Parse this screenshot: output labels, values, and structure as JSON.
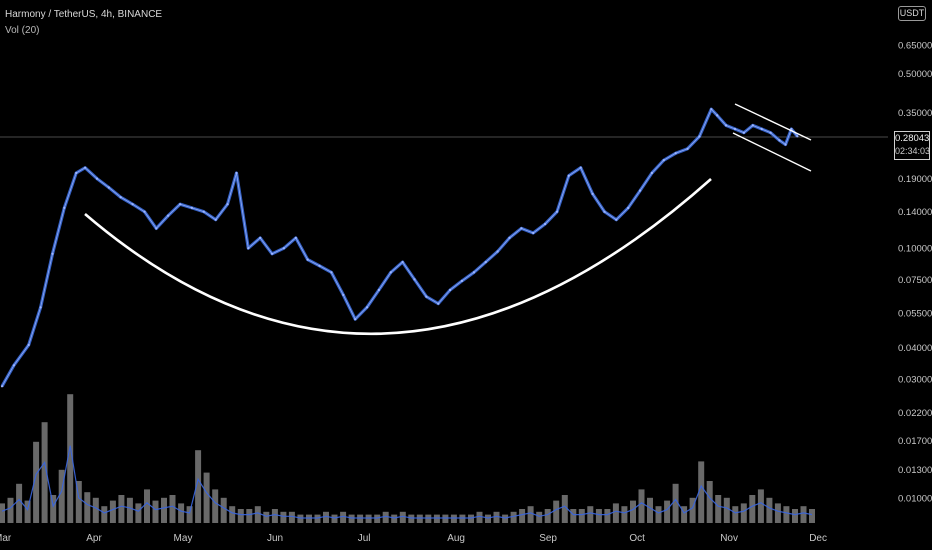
{
  "header": {
    "symbol_line": "Harmony / TetherUS, 4h, BINANCE",
    "indicator_line": "Vol (20)",
    "currency_badge": "USDT"
  },
  "price_badge": {
    "price": "0.28043",
    "countdown": "02:34:03"
  },
  "colors": {
    "background": "#000000",
    "price_line": "#3a6ad8",
    "price_line_hi": "#9fb6ff",
    "volume_bar": "#8c8c8c",
    "volume_line": "#3a66e0",
    "annotation": "#ffffff",
    "axis_text": "#c8c8c8"
  },
  "chart_data": {
    "type": "line",
    "y_scale": "log",
    "y_ticks": [
      "0.65000",
      "0.50000",
      "0.35000",
      "0.19000",
      "0.14000",
      "0.10000",
      "0.07500",
      "0.05500",
      "0.04000",
      "0.03000",
      "0.02200",
      "0.01700",
      "0.01300",
      "0.01000"
    ],
    "x_ticks": [
      "Mar",
      "Apr",
      "May",
      "Jun",
      "Jul",
      "Aug",
      "Sep",
      "Oct",
      "Nov",
      "Dec"
    ],
    "ylim": [
      0.0078,
      0.85
    ],
    "series": [
      {
        "x": [
          "2021-03-01",
          "2021-03-05",
          "2021-03-10",
          "2021-03-14",
          "2021-03-18",
          "2021-03-22",
          "2021-03-26",
          "2021-03-29",
          "2021-04-02",
          "2021-04-06",
          "2021-04-10",
          "2021-04-14",
          "2021-04-18",
          "2021-04-22",
          "2021-04-26",
          "2021-04-30",
          "2021-05-04",
          "2021-05-08",
          "2021-05-12",
          "2021-05-16",
          "2021-05-19",
          "2021-05-23",
          "2021-05-27",
          "2021-05-31",
          "2021-06-04",
          "2021-06-08",
          "2021-06-12",
          "2021-06-16",
          "2021-06-20",
          "2021-06-24",
          "2021-06-28",
          "2021-07-02",
          "2021-07-06",
          "2021-07-10",
          "2021-07-14",
          "2021-07-18",
          "2021-07-22",
          "2021-07-26",
          "2021-07-30",
          "2021-08-03",
          "2021-08-07",
          "2021-08-11",
          "2021-08-15",
          "2021-08-19",
          "2021-08-23",
          "2021-08-27",
          "2021-08-31",
          "2021-09-04",
          "2021-09-08",
          "2021-09-12",
          "2021-09-16",
          "2021-09-20",
          "2021-09-24",
          "2021-09-28",
          "2021-10-02",
          "2021-10-06",
          "2021-10-10",
          "2021-10-14",
          "2021-10-18",
          "2021-10-22",
          "2021-10-26",
          "2021-10-28",
          "2021-10-31",
          "2021-11-03",
          "2021-11-06",
          "2021-11-09",
          "2021-11-12",
          "2021-11-15",
          "2021-11-18",
          "2021-11-20",
          "2021-11-22",
          "2021-11-24"
        ],
        "values": [
          0.028,
          0.034,
          0.041,
          0.058,
          0.095,
          0.145,
          0.2,
          0.21,
          0.19,
          0.175,
          0.16,
          0.15,
          0.14,
          0.12,
          0.135,
          0.15,
          0.145,
          0.14,
          0.13,
          0.15,
          0.2,
          0.1,
          0.11,
          0.095,
          0.1,
          0.11,
          0.09,
          0.085,
          0.08,
          0.065,
          0.052,
          0.058,
          0.068,
          0.08,
          0.088,
          0.075,
          0.064,
          0.06,
          0.068,
          0.074,
          0.08,
          0.088,
          0.097,
          0.11,
          0.12,
          0.115,
          0.125,
          0.14,
          0.195,
          0.21,
          0.165,
          0.14,
          0.13,
          0.145,
          0.17,
          0.2,
          0.225,
          0.24,
          0.25,
          0.28,
          0.36,
          0.34,
          0.31,
          0.3,
          0.29,
          0.31,
          0.3,
          0.29,
          0.27,
          0.26,
          0.3,
          0.28043
        ]
      }
    ],
    "volume": {
      "title": "Vol (20)",
      "values": [
        0.7,
        0.9,
        1.4,
        0.8,
        2.9,
        3.6,
        1.0,
        1.9,
        4.6,
        1.5,
        1.1,
        0.9,
        0.6,
        0.8,
        1.0,
        0.9,
        0.7,
        1.2,
        0.8,
        0.9,
        1.0,
        0.7,
        0.6,
        2.6,
        1.8,
        1.2,
        0.9,
        0.6,
        0.5,
        0.5,
        0.6,
        0.4,
        0.5,
        0.4,
        0.4,
        0.3,
        0.3,
        0.3,
        0.4,
        0.3,
        0.4,
        0.3,
        0.3,
        0.3,
        0.3,
        0.4,
        0.3,
        0.4,
        0.3,
        0.3,
        0.3,
        0.3,
        0.3,
        0.3,
        0.3,
        0.3,
        0.4,
        0.3,
        0.4,
        0.3,
        0.4,
        0.5,
        0.6,
        0.4,
        0.5,
        0.8,
        1.0,
        0.5,
        0.5,
        0.6,
        0.5,
        0.5,
        0.7,
        0.6,
        0.8,
        1.2,
        0.9,
        0.6,
        0.8,
        1.4,
        0.6,
        0.9,
        2.2,
        1.5,
        1.0,
        0.9,
        0.6,
        0.7,
        1.0,
        1.2,
        0.9,
        0.7,
        0.6,
        0.5,
        0.6,
        0.5
      ]
    },
    "annotations": [
      {
        "type": "arc",
        "label": ""
      },
      {
        "type": "descending-channel",
        "label": ""
      }
    ],
    "current_price": 0.28043
  }
}
